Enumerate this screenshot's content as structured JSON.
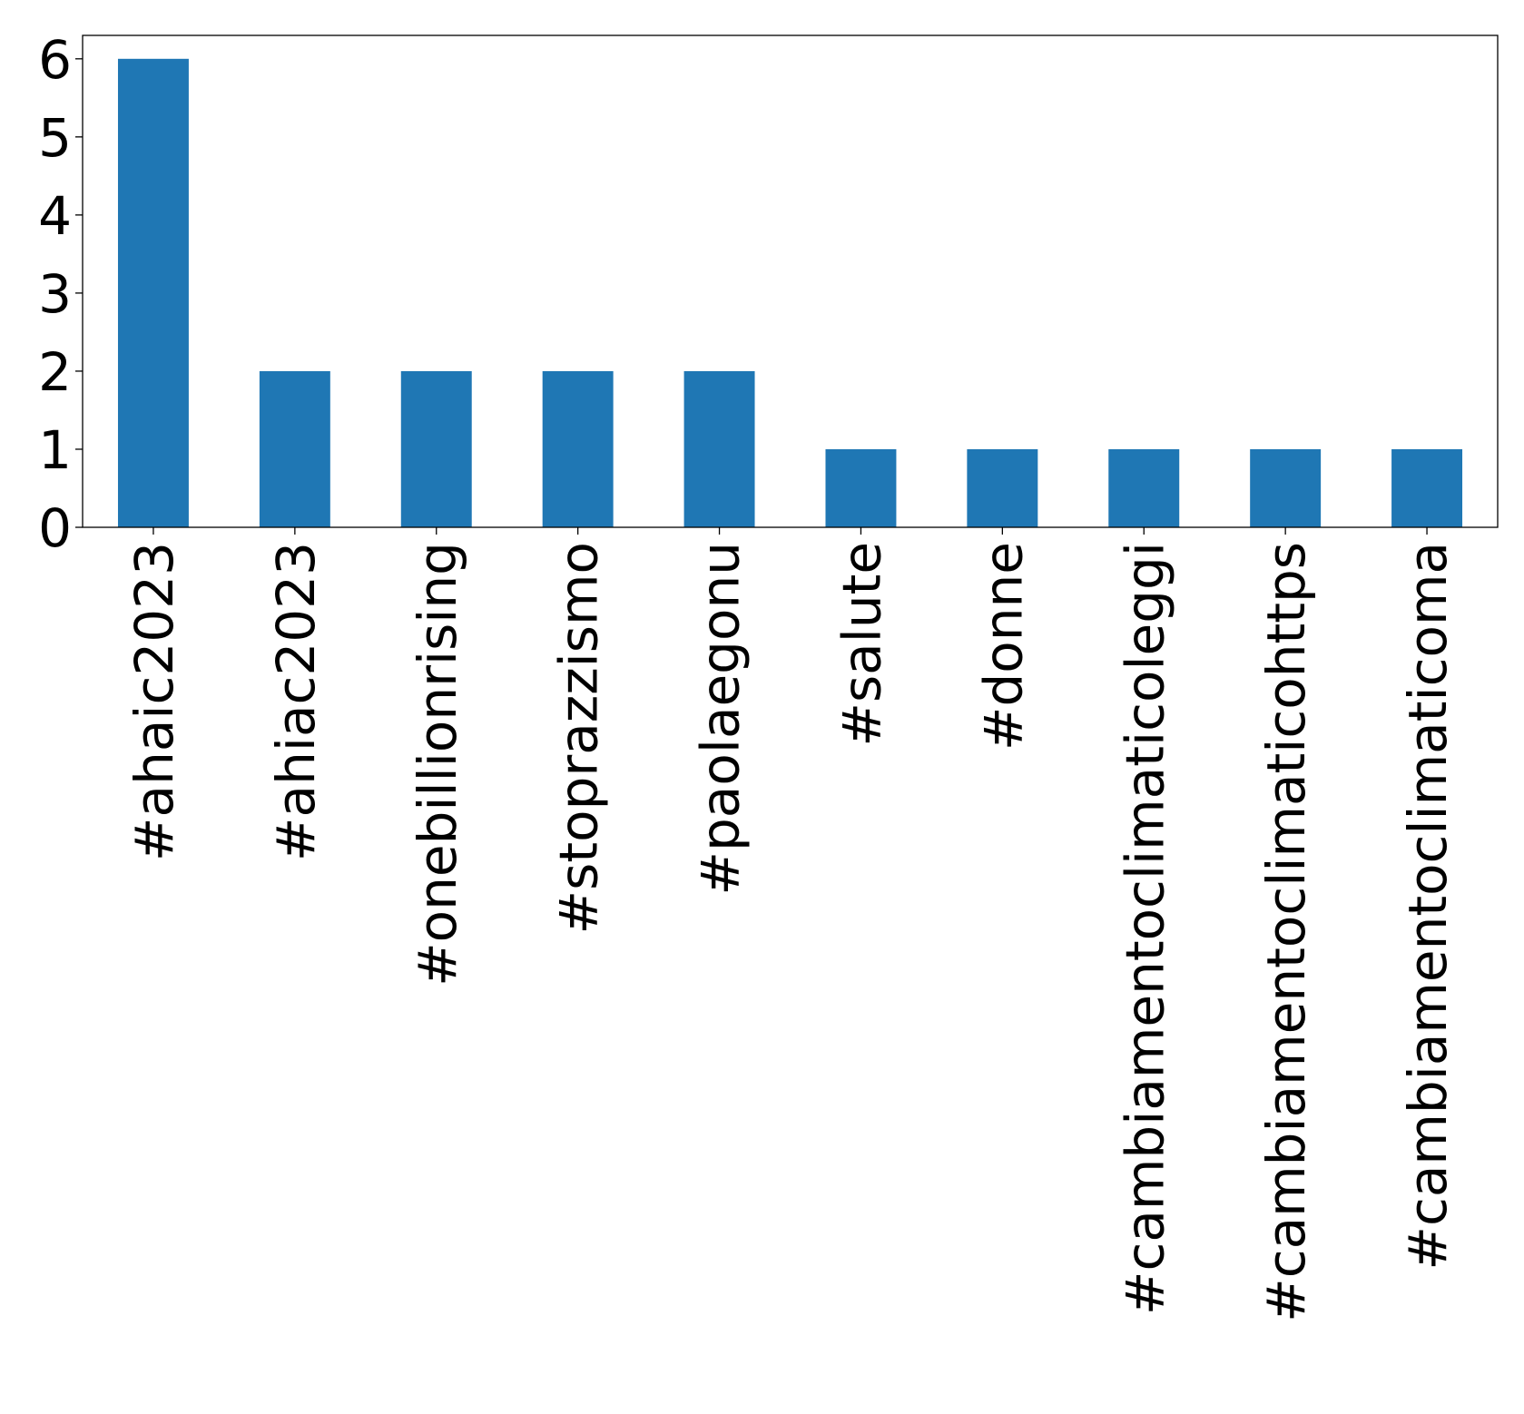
{
  "chart_data": {
    "type": "bar",
    "title": "",
    "xlabel": "",
    "ylabel": "",
    "categories": [
      "#ahaic2023",
      "#ahiac2023",
      "#onebillionrising",
      "#stoprazzismo",
      "#paolaegonu",
      "#salute",
      "#donne",
      "#cambiamentoclimaticoleggi",
      "#cambiamentoclimaticohttps",
      "#cambiamentoclimaticoma"
    ],
    "values": [
      6,
      2,
      2,
      2,
      2,
      1,
      1,
      1,
      1,
      1
    ],
    "ylim": [
      0,
      6.3
    ],
    "yticks": [
      0,
      1,
      2,
      3,
      4,
      5,
      6
    ],
    "bar_color": "#1f77b4",
    "grid": false,
    "legend": "none"
  }
}
